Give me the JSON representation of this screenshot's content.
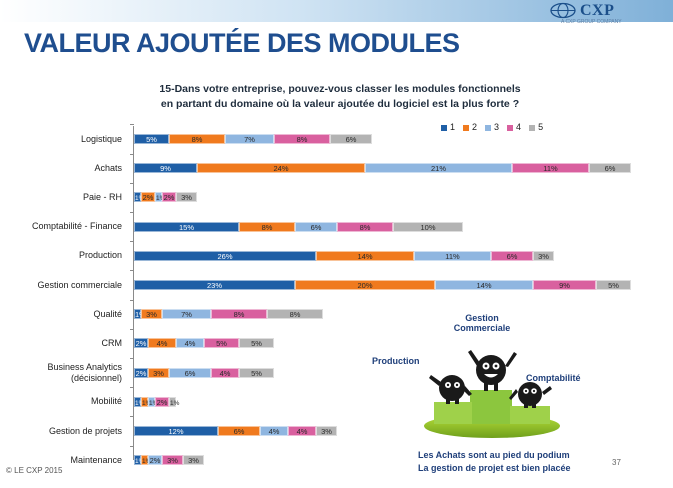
{
  "header": {
    "logo_text": "CXP",
    "logo_tagline": "A CXP GROUP COMPANY",
    "title": "VALEUR AJOUTÉE DES MODULES"
  },
  "chart_data": {
    "type": "bar",
    "orientation": "horizontal-stacked",
    "title_lines": [
      "15-Dans votre entreprise, pouvez-vous classer les modules fonctionnels",
      "en partant du domaine où la valeur ajoutée du logiciel est la plus forte ?"
    ],
    "legend_position": "top-right",
    "series": [
      {
        "name": "1",
        "color": "#1f5fa6"
      },
      {
        "name": "2",
        "color": "#f07a1e"
      },
      {
        "name": "3",
        "color": "#8fb6e0"
      },
      {
        "name": "4",
        "color": "#d9609f"
      },
      {
        "name": "5",
        "color": "#b3b3b3"
      }
    ],
    "categories": [
      {
        "label": "Logistique",
        "values": [
          5,
          8,
          7,
          8,
          6
        ],
        "labels": [
          "5%",
          "8%",
          "7%",
          "8%",
          "6%"
        ]
      },
      {
        "label": "Achats",
        "values": [
          9,
          24,
          21,
          11,
          6
        ],
        "labels": [
          "9%",
          "24%",
          "21%",
          "11%",
          "6%"
        ]
      },
      {
        "label": "Paie - RH",
        "values": [
          1,
          2,
          1,
          2,
          3
        ],
        "labels": [
          "1%",
          "2%",
          "1%",
          "2%",
          "3%"
        ]
      },
      {
        "label": "Comptabilité - Finance",
        "values": [
          15,
          8,
          6,
          8,
          10
        ],
        "labels": [
          "15%",
          "8%",
          "6%",
          "8%",
          "10%"
        ]
      },
      {
        "label": "Production",
        "values": [
          26,
          14,
          11,
          6,
          3
        ],
        "labels": [
          "26%",
          "14%",
          "11%",
          "6%",
          "3%"
        ]
      },
      {
        "label": "Gestion commerciale",
        "values": [
          23,
          20,
          14,
          9,
          5
        ],
        "labels": [
          "23%",
          "20%",
          "14%",
          "9%",
          "5%"
        ]
      },
      {
        "label": "Qualité",
        "values": [
          1,
          3,
          7,
          8,
          8
        ],
        "labels": [
          "1%",
          "3%",
          "7%",
          "8%",
          "8%"
        ]
      },
      {
        "label": "CRM",
        "values": [
          2,
          4,
          4,
          5,
          5
        ],
        "labels": [
          "2%",
          "4%",
          "4%",
          "5%",
          "5%"
        ]
      },
      {
        "label": "Business Analytics (décisionnel)",
        "label_lines": [
          "Business Analytics",
          "(décisionnel)"
        ],
        "values": [
          2,
          3,
          6,
          4,
          5
        ],
        "labels": [
          "2%",
          "3%",
          "6%",
          "4%",
          "5%"
        ]
      },
      {
        "label": "Mobilité",
        "values": [
          1,
          1,
          1,
          2,
          1
        ],
        "labels": [
          "1%",
          "1%",
          "1%",
          "2%",
          "1%"
        ]
      },
      {
        "label": "Gestion de projets",
        "values": [
          12,
          6,
          4,
          4,
          3
        ],
        "labels": [
          "12%",
          "6%",
          "4%",
          "4%",
          "3%"
        ]
      },
      {
        "label": "Maintenance",
        "values": [
          1,
          1,
          2,
          3,
          3
        ],
        "labels": [
          "1%",
          "1%",
          "2%",
          "3%",
          "3%"
        ]
      }
    ]
  },
  "figure": {
    "labels": {
      "production": "Production",
      "gestion_line1": "Gestion",
      "gestion_line2": "Commerciale",
      "comptabilite": "Comptabilité"
    }
  },
  "footer": {
    "note_line1": "Les Achats sont au pied du podium",
    "note_line2": "La gestion de projet est bien placée",
    "copyright": "© LE CXP 2015",
    "page": "37"
  }
}
